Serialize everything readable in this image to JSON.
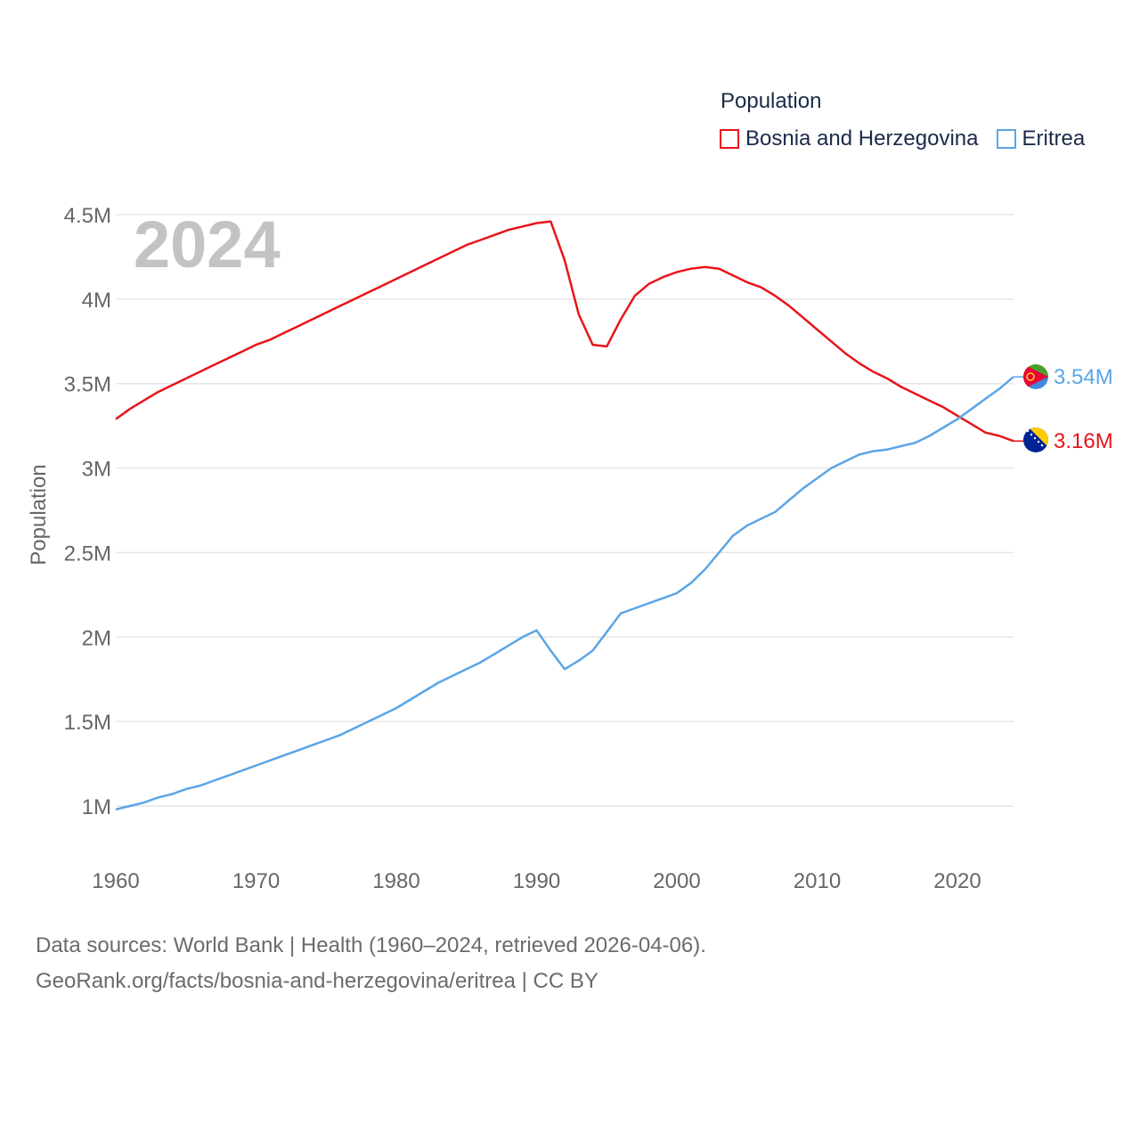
{
  "colors": {
    "bosnia": "#e8141a",
    "eritrea": "#5aa5e6",
    "grid": "#e6e6e6",
    "axis_text": "#666666",
    "year_label": "#c3c3c3"
  },
  "legend": {
    "title": "Population",
    "items": [
      {
        "label": "Bosnia and Herzegovina",
        "color": "#e8141a"
      },
      {
        "label": "Eritrea",
        "color": "#5aa5e6"
      }
    ]
  },
  "footer": {
    "line1": "Data sources: World Bank | Health (1960–2024, retrieved 2026-04-06).",
    "line2": "GeoRank.org/facts/bosnia-and-herzegovina/eritrea | CC BY"
  },
  "chart_data": {
    "type": "line",
    "title": "Population",
    "year_label": "2024",
    "xlabel": "",
    "ylabel": "Population",
    "xlim": [
      1960,
      2024
    ],
    "ylim": [
      0.8,
      4.6
    ],
    "x_ticks": [
      1960,
      1970,
      1980,
      1990,
      2000,
      2010,
      2020
    ],
    "y_ticks": [
      {
        "value": 1.0,
        "label": "1M"
      },
      {
        "value": 1.5,
        "label": "1.5M"
      },
      {
        "value": 2.0,
        "label": "2M"
      },
      {
        "value": 2.5,
        "label": "2.5M"
      },
      {
        "value": 3.0,
        "label": "3M"
      },
      {
        "value": 3.5,
        "label": "3.5M"
      },
      {
        "value": 4.0,
        "label": "4M"
      },
      {
        "value": 4.5,
        "label": "4.5M"
      }
    ],
    "grid": true,
    "legend_position": "top-right",
    "series": [
      {
        "name": "Bosnia and Herzegovina",
        "color": "#e8141a",
        "end_label": "3.16M",
        "flag": "bosnia-flag-icon",
        "points": [
          [
            1960,
            3.29
          ],
          [
            1961,
            3.35
          ],
          [
            1962,
            3.4
          ],
          [
            1963,
            3.45
          ],
          [
            1964,
            3.49
          ],
          [
            1965,
            3.53
          ],
          [
            1966,
            3.57
          ],
          [
            1967,
            3.61
          ],
          [
            1968,
            3.65
          ],
          [
            1969,
            3.69
          ],
          [
            1970,
            3.73
          ],
          [
            1971,
            3.76
          ],
          [
            1972,
            3.8
          ],
          [
            1973,
            3.84
          ],
          [
            1974,
            3.88
          ],
          [
            1975,
            3.92
          ],
          [
            1976,
            3.96
          ],
          [
            1977,
            4.0
          ],
          [
            1978,
            4.04
          ],
          [
            1979,
            4.08
          ],
          [
            1980,
            4.12
          ],
          [
            1981,
            4.16
          ],
          [
            1982,
            4.2
          ],
          [
            1983,
            4.24
          ],
          [
            1984,
            4.28
          ],
          [
            1985,
            4.32
          ],
          [
            1986,
            4.35
          ],
          [
            1987,
            4.38
          ],
          [
            1988,
            4.41
          ],
          [
            1989,
            4.43
          ],
          [
            1990,
            4.45
          ],
          [
            1991,
            4.46
          ],
          [
            1992,
            4.23
          ],
          [
            1993,
            3.91
          ],
          [
            1994,
            3.73
          ],
          [
            1995,
            3.72
          ],
          [
            1996,
            3.88
          ],
          [
            1997,
            4.02
          ],
          [
            1998,
            4.09
          ],
          [
            1999,
            4.13
          ],
          [
            2000,
            4.16
          ],
          [
            2001,
            4.18
          ],
          [
            2002,
            4.19
          ],
          [
            2003,
            4.18
          ],
          [
            2004,
            4.14
          ],
          [
            2005,
            4.1
          ],
          [
            2006,
            4.07
          ],
          [
            2007,
            4.02
          ],
          [
            2008,
            3.96
          ],
          [
            2009,
            3.89
          ],
          [
            2010,
            3.82
          ],
          [
            2011,
            3.75
          ],
          [
            2012,
            3.68
          ],
          [
            2013,
            3.62
          ],
          [
            2014,
            3.57
          ],
          [
            2015,
            3.53
          ],
          [
            2016,
            3.48
          ],
          [
            2017,
            3.44
          ],
          [
            2018,
            3.4
          ],
          [
            2019,
            3.36
          ],
          [
            2020,
            3.31
          ],
          [
            2021,
            3.26
          ],
          [
            2022,
            3.21
          ],
          [
            2023,
            3.19
          ],
          [
            2024,
            3.16
          ]
        ]
      },
      {
        "name": "Eritrea",
        "color": "#5aa5e6",
        "end_label": "3.54M",
        "flag": "eritrea-flag-icon",
        "points": [
          [
            1960,
            0.98
          ],
          [
            1961,
            1.0
          ],
          [
            1962,
            1.02
          ],
          [
            1963,
            1.05
          ],
          [
            1964,
            1.07
          ],
          [
            1965,
            1.1
          ],
          [
            1966,
            1.12
          ],
          [
            1967,
            1.15
          ],
          [
            1968,
            1.18
          ],
          [
            1969,
            1.21
          ],
          [
            1970,
            1.24
          ],
          [
            1971,
            1.27
          ],
          [
            1972,
            1.3
          ],
          [
            1973,
            1.33
          ],
          [
            1974,
            1.36
          ],
          [
            1975,
            1.39
          ],
          [
            1976,
            1.42
          ],
          [
            1977,
            1.46
          ],
          [
            1978,
            1.5
          ],
          [
            1979,
            1.54
          ],
          [
            1980,
            1.58
          ],
          [
            1981,
            1.63
          ],
          [
            1982,
            1.68
          ],
          [
            1983,
            1.73
          ],
          [
            1984,
            1.77
          ],
          [
            1985,
            1.81
          ],
          [
            1986,
            1.85
          ],
          [
            1987,
            1.9
          ],
          [
            1988,
            1.95
          ],
          [
            1989,
            2.0
          ],
          [
            1990,
            2.04
          ],
          [
            1991,
            1.92
          ],
          [
            1992,
            1.81
          ],
          [
            1993,
            1.86
          ],
          [
            1994,
            1.92
          ],
          [
            1995,
            2.03
          ],
          [
            1996,
            2.14
          ],
          [
            1997,
            2.17
          ],
          [
            1998,
            2.2
          ],
          [
            1999,
            2.23
          ],
          [
            2000,
            2.26
          ],
          [
            2001,
            2.32
          ],
          [
            2002,
            2.4
          ],
          [
            2003,
            2.5
          ],
          [
            2004,
            2.6
          ],
          [
            2005,
            2.66
          ],
          [
            2006,
            2.7
          ],
          [
            2007,
            2.74
          ],
          [
            2008,
            2.81
          ],
          [
            2009,
            2.88
          ],
          [
            2010,
            2.94
          ],
          [
            2011,
            3.0
          ],
          [
            2012,
            3.04
          ],
          [
            2013,
            3.08
          ],
          [
            2014,
            3.1
          ],
          [
            2015,
            3.11
          ],
          [
            2016,
            3.13
          ],
          [
            2017,
            3.15
          ],
          [
            2018,
            3.19
          ],
          [
            2019,
            3.24
          ],
          [
            2020,
            3.29
          ],
          [
            2021,
            3.35
          ],
          [
            2022,
            3.41
          ],
          [
            2023,
            3.47
          ],
          [
            2024,
            3.54
          ]
        ]
      }
    ]
  }
}
